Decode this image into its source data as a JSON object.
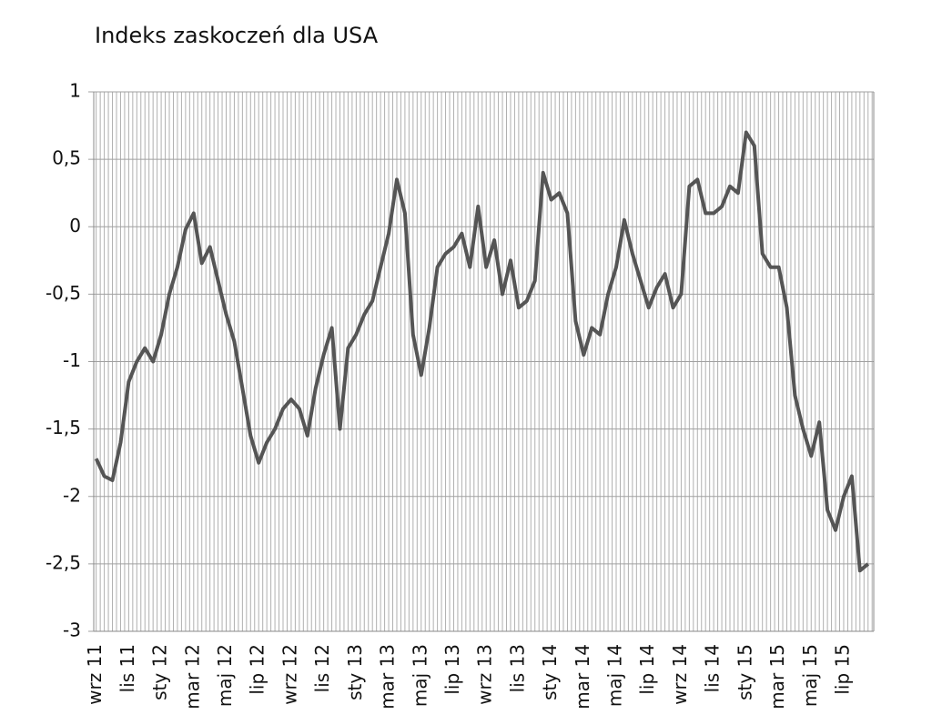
{
  "chart_data": {
    "type": "line",
    "title": "Indeks zaskoczeń dla USA",
    "categories": [
      "wrz 11",
      null,
      null,
      null,
      "lis 11",
      null,
      null,
      null,
      "sty 12",
      null,
      null,
      null,
      "mar 12",
      null,
      null,
      null,
      "maj 12",
      null,
      null,
      null,
      "lip 12",
      null,
      null,
      null,
      "wrz 12",
      null,
      null,
      null,
      "lis 12",
      null,
      null,
      null,
      "sty 13",
      null,
      null,
      null,
      "mar 13",
      null,
      null,
      null,
      "maj 13",
      null,
      null,
      null,
      "lip 13",
      null,
      null,
      null,
      "wrz 13",
      null,
      null,
      null,
      "lis 13",
      null,
      null,
      null,
      "sty 14",
      null,
      null,
      null,
      "mar 14",
      null,
      null,
      null,
      "maj 14",
      null,
      null,
      null,
      "lip 14",
      null,
      null,
      null,
      "wrz 14",
      null,
      null,
      null,
      "lis 14",
      null,
      null,
      null,
      "sty 15",
      null,
      null,
      null,
      "mar 15",
      null,
      null,
      null,
      "maj 15",
      null,
      null,
      null,
      "lip 15",
      null,
      null,
      null
    ],
    "values": [
      -1.72,
      -1.85,
      -1.88,
      -1.6,
      -1.15,
      -1.0,
      -0.9,
      -1.0,
      -0.8,
      -0.5,
      -0.3,
      -0.02,
      0.1,
      -0.27,
      -0.15,
      -0.4,
      -0.65,
      -0.85,
      -1.2,
      -1.55,
      -1.75,
      -1.6,
      -1.5,
      -1.35,
      -1.28,
      -1.35,
      -1.55,
      -1.2,
      -0.95,
      -0.75,
      -1.5,
      -0.9,
      -0.8,
      -0.65,
      -0.55,
      -0.3,
      -0.05,
      0.35,
      0.1,
      -0.8,
      -1.1,
      -0.75,
      -0.3,
      -0.2,
      -0.15,
      -0.05,
      -0.3,
      0.15,
      -0.3,
      -0.1,
      -0.5,
      -0.25,
      -0.6,
      -0.55,
      -0.4,
      0.4,
      0.2,
      0.25,
      0.1,
      -0.7,
      -0.95,
      -0.75,
      -0.8,
      -0.5,
      -0.3,
      0.05,
      -0.2,
      -0.4,
      -0.6,
      -0.45,
      -0.35,
      -0.6,
      -0.5,
      0.3,
      0.35,
      0.1,
      0.1,
      0.15,
      0.3,
      0.25,
      0.7,
      0.6,
      -0.2,
      -0.3,
      -0.3,
      -0.6,
      -1.25,
      -1.5,
      -1.7,
      -1.45,
      -2.1,
      -2.25,
      -2.0,
      -1.85,
      -2.55,
      -2.5
    ],
    "color": "#555555",
    "ylim": [
      -3,
      1
    ],
    "yticks": [
      -3,
      {
        "value": -2.5,
        "label": "-2,5"
      },
      -2,
      {
        "value": -1.5,
        "label": "-1,5"
      },
      -1,
      {
        "value": -0.5,
        "label": "-0,5"
      },
      0,
      {
        "value": 0.5,
        "label": "0,5"
      },
      1
    ],
    "grid": true
  }
}
